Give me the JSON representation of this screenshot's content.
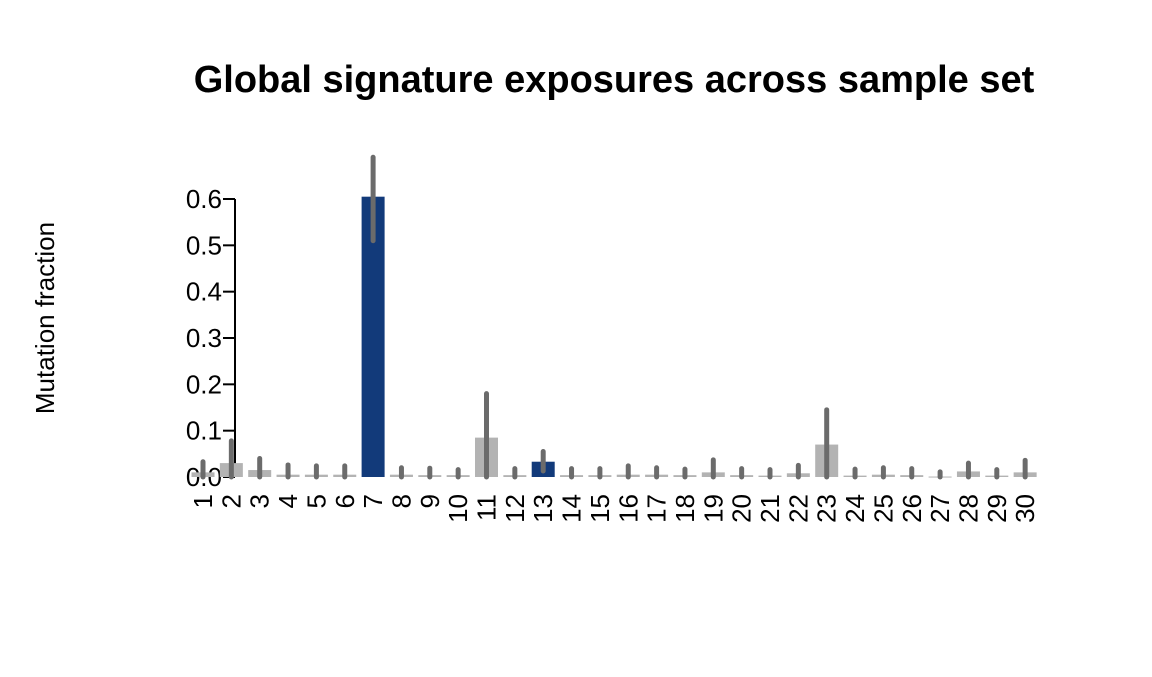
{
  "chart_data": {
    "type": "bar",
    "title": "Global signature exposures across sample set",
    "xlabel": "",
    "ylabel": "Mutation fraction",
    "ylim": [
      0,
      0.6
    ],
    "yticks": [
      "0.0",
      "0.1",
      "0.2",
      "0.3",
      "0.4",
      "0.5",
      "0.6"
    ],
    "grid": false,
    "categories": [
      "1",
      "2",
      "3",
      "4",
      "5",
      "6",
      "7",
      "8",
      "9",
      "10",
      "11",
      "12",
      "13",
      "14",
      "15",
      "16",
      "17",
      "18",
      "19",
      "20",
      "21",
      "22",
      "23",
      "24",
      "25",
      "26",
      "27",
      "28",
      "29",
      "30"
    ],
    "values": [
      0.01,
      0.03,
      0.015,
      0.005,
      0.005,
      0.005,
      0.605,
      0.005,
      0.004,
      0.004,
      0.085,
      0.004,
      0.033,
      0.004,
      0.004,
      0.005,
      0.005,
      0.004,
      0.01,
      0.004,
      0.003,
      0.008,
      0.07,
      0.003,
      0.005,
      0.004,
      0.001,
      0.012,
      0.003,
      0.01
    ],
    "error_low": [
      0,
      0,
      0,
      0,
      0,
      0,
      0.51,
      0,
      0,
      0,
      0,
      0,
      0.013,
      0,
      0,
      0,
      0,
      0,
      0,
      0,
      0,
      0,
      0,
      0,
      0,
      0,
      0,
      0,
      0,
      0
    ],
    "error_high": [
      0.033,
      0.078,
      0.04,
      0.026,
      0.024,
      0.024,
      0.69,
      0.02,
      0.019,
      0.016,
      0.18,
      0.018,
      0.055,
      0.018,
      0.018,
      0.024,
      0.02,
      0.017,
      0.037,
      0.018,
      0.016,
      0.025,
      0.145,
      0.017,
      0.02,
      0.018,
      0.011,
      0.03,
      0.016,
      0.036
    ],
    "highlighted": [
      "7",
      "13"
    ],
    "colors": {
      "highlight": "#123a7a",
      "default": "#b3b3b3",
      "error_bar": "#6b6b6b"
    }
  }
}
